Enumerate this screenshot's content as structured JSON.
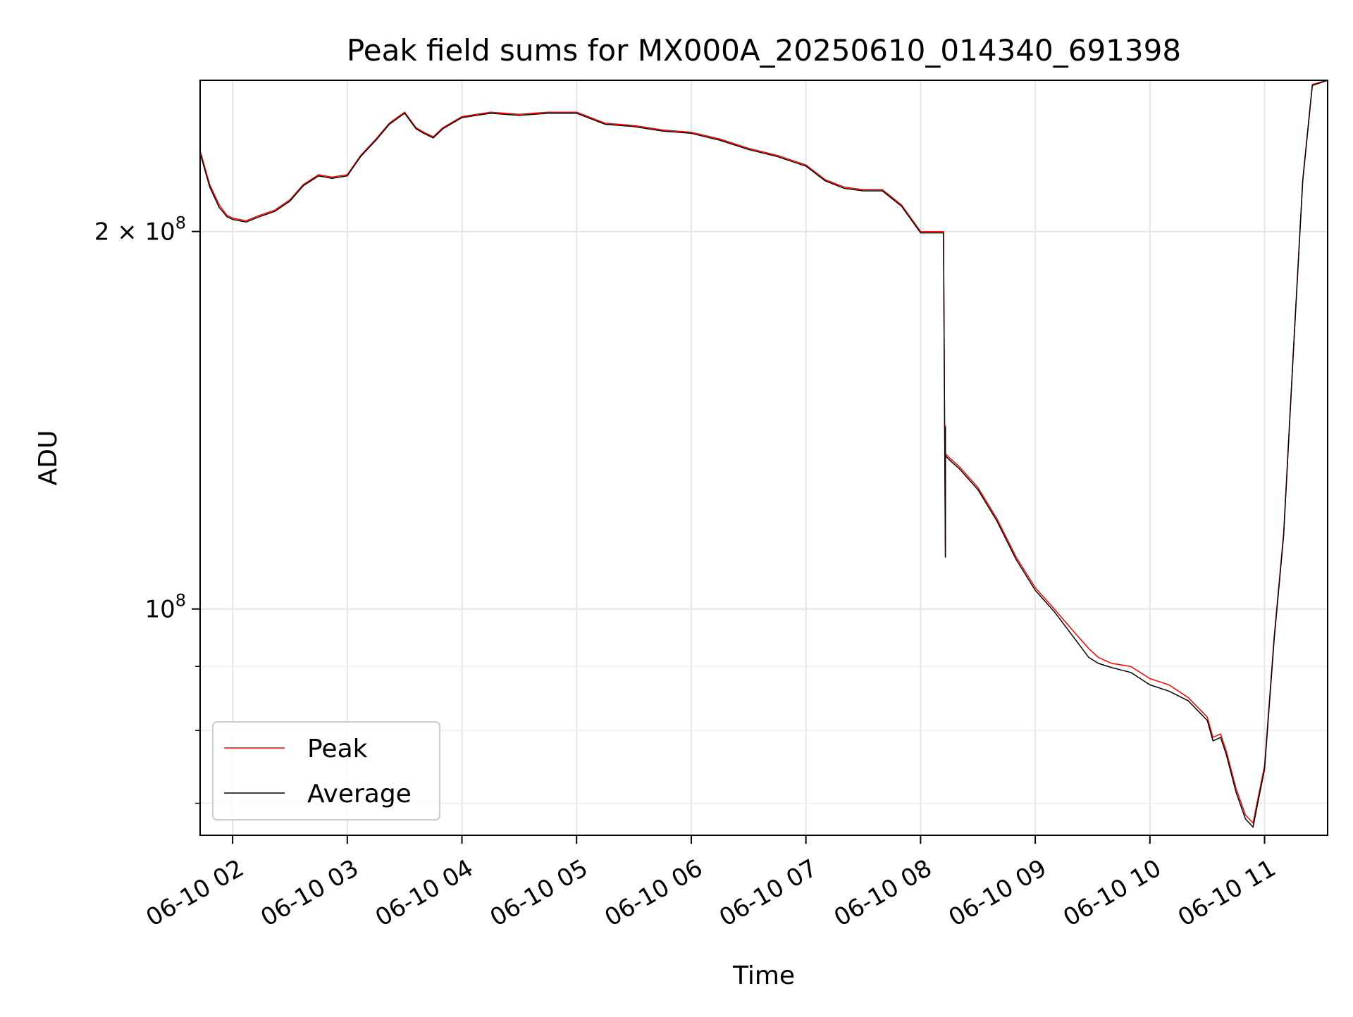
{
  "chart_data": {
    "type": "line",
    "title": "Peak field sums for MX000A_20250610_014340_691398",
    "xlabel": "Time",
    "ylabel": "ADU",
    "yscale": "log",
    "ylim": [
      66000000,
      264000000
    ],
    "xlim": [
      "06-10 01:43",
      "06-10 11:33"
    ],
    "grid": true,
    "legend_placement": "lower-left",
    "x_ticks": [
      {
        "t": "06-10 02:00",
        "label": "06-10 02"
      },
      {
        "t": "06-10 03:00",
        "label": "06-10 03"
      },
      {
        "t": "06-10 04:00",
        "label": "06-10 04"
      },
      {
        "t": "06-10 05:00",
        "label": "06-10 05"
      },
      {
        "t": "06-10 06:00",
        "label": "06-10 06"
      },
      {
        "t": "06-10 07:00",
        "label": "06-10 07"
      },
      {
        "t": "06-10 08:00",
        "label": "06-10 08"
      },
      {
        "t": "06-10 09:00",
        "label": "06-10 09"
      },
      {
        "t": "06-10 10:00",
        "label": "06-10 10"
      },
      {
        "t": "06-10 11:00",
        "label": "06-10 11"
      }
    ],
    "y_major_ticks": [
      {
        "value": 100000000,
        "base": "10",
        "exp": "8",
        "mant": ""
      },
      {
        "value": 200000000,
        "base": "10",
        "exp": "8",
        "mant": "2 × "
      }
    ],
    "y_minor_ticks": [
      70000000,
      80000000,
      90000000
    ],
    "x": [
      "06-10 01:43",
      "06-10 01:48",
      "06-10 01:53",
      "06-10 01:57",
      "06-10 02:00",
      "06-10 02:07",
      "06-10 02:14",
      "06-10 02:22",
      "06-10 02:30",
      "06-10 02:37",
      "06-10 02:45",
      "06-10 02:52",
      "06-10 03:00",
      "06-10 03:07",
      "06-10 03:15",
      "06-10 03:22",
      "06-10 03:30",
      "06-10 03:36",
      "06-10 03:40",
      "06-10 03:45",
      "06-10 03:50",
      "06-10 04:00",
      "06-10 04:15",
      "06-10 04:30",
      "06-10 04:45",
      "06-10 05:00",
      "06-10 05:15",
      "06-10 05:30",
      "06-10 05:45",
      "06-10 06:00",
      "06-10 06:15",
      "06-10 06:30",
      "06-10 06:45",
      "06-10 07:00",
      "06-10 07:10",
      "06-10 07:20",
      "06-10 07:30",
      "06-10 07:40",
      "06-10 07:50",
      "06-10 08:00",
      "06-10 08:08",
      "06-10 08:12",
      "06-10 08:13",
      "06-10 08:13",
      "06-10 08:13",
      "06-10 08:14",
      "06-10 08:15",
      "06-10 08:20",
      "06-10 08:30",
      "06-10 08:40",
      "06-10 08:50",
      "06-10 09:00",
      "06-10 09:10",
      "06-10 09:20",
      "06-10 09:28",
      "06-10 09:33",
      "06-10 09:40",
      "06-10 09:50",
      "06-10 10:00",
      "06-10 10:10",
      "06-10 10:20",
      "06-10 10:30",
      "06-10 10:33",
      "06-10 10:37",
      "06-10 10:40",
      "06-10 10:45",
      "06-10 10:50",
      "06-10 10:54",
      "06-10 10:56",
      "06-10 11:00",
      "06-10 11:05",
      "06-10 11:10",
      "06-10 11:15",
      "06-10 11:20",
      "06-10 11:25",
      "06-10 11:33"
    ],
    "series": [
      {
        "name": "Peak",
        "color": "#ff0000",
        "values": [
          232000000,
          218000000,
          210000000,
          206000000,
          205000000,
          204000000,
          206000000,
          208000000,
          212000000,
          218000000,
          222000000,
          221000000,
          222000000,
          230000000,
          237000000,
          244000000,
          249000000,
          242000000,
          240000000,
          238000000,
          242000000,
          247000000,
          249000000,
          248000000,
          249000000,
          249000000,
          244000000,
          243000000,
          241000000,
          240000000,
          237000000,
          233000000,
          230000000,
          226000000,
          220000000,
          217000000,
          216000000,
          216000000,
          210000000,
          200000000,
          200000000,
          200000000,
          110000000,
          140000000,
          133000000,
          132500000,
          132000000,
          130000000,
          125000000,
          118000000,
          110000000,
          104000000,
          100000000,
          96000000,
          93000000,
          91500000,
          90500000,
          90000000,
          88000000,
          87000000,
          85000000,
          82000000,
          79000000,
          79500000,
          77000000,
          72000000,
          68500000,
          67500000,
          70000000,
          75000000,
          95000000,
          115000000,
          160000000,
          220000000,
          262000000,
          264000000
        ]
      },
      {
        "name": "Average",
        "color": "#000000",
        "values": [
          231000000,
          217000000,
          209000000,
          205500000,
          204500000,
          203500000,
          205500000,
          207500000,
          211500000,
          217500000,
          221500000,
          220500000,
          221500000,
          229500000,
          236500000,
          243500000,
          248500000,
          241500000,
          239500000,
          237500000,
          241500000,
          246500000,
          248500000,
          247500000,
          248500000,
          248500000,
          243500000,
          242500000,
          240500000,
          239500000,
          236500000,
          232500000,
          229500000,
          225500000,
          219500000,
          216500000,
          215500000,
          215500000,
          209500000,
          199500000,
          199500000,
          199500000,
          110000000,
          139500000,
          132500000,
          132000000,
          131500000,
          129500000,
          124500000,
          117500000,
          109500000,
          103500000,
          99500000,
          95000000,
          91500000,
          90500000,
          89800000,
          89000000,
          87000000,
          86000000,
          84500000,
          81500000,
          78500000,
          79000000,
          76500000,
          71500000,
          68000000,
          67000000,
          69500000,
          74500000,
          94500000,
          114500000,
          159500000,
          219500000,
          261500000,
          264000000
        ]
      }
    ]
  }
}
